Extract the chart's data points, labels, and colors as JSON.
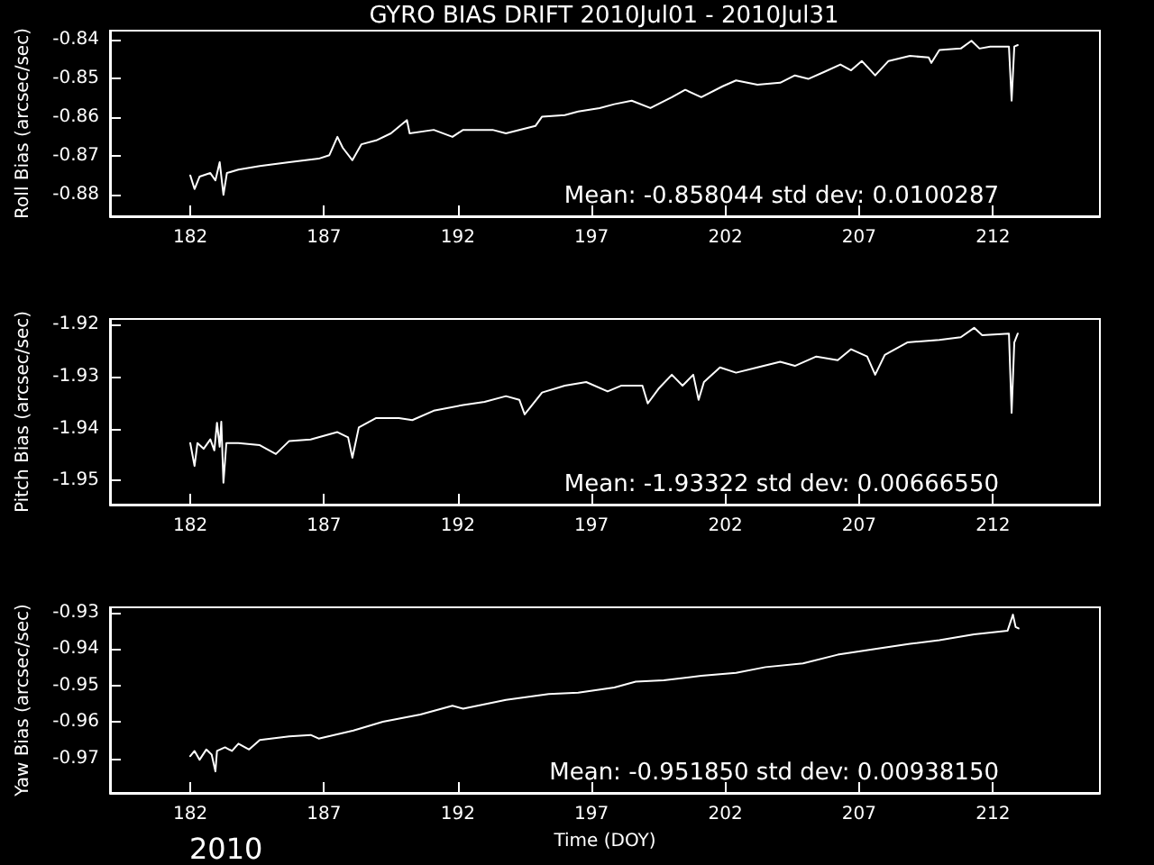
{
  "chart_data": [
    {
      "type": "line",
      "title": "GYRO BIAS DRIFT 2010Jul01 - 2010Jul31",
      "ylabel": "Roll Bias (arcsec/sec)",
      "color": "#ffffff",
      "xlim": [
        179,
        216
      ],
      "xticks": [
        182,
        187,
        192,
        197,
        202,
        207,
        212
      ],
      "ylim": [
        -0.8855,
        -0.8378
      ],
      "yticks": [
        -0.88,
        -0.87,
        -0.86,
        -0.85,
        -0.84
      ],
      "annotations": [
        "Mean: -0.858044 std dev: 0.0100287"
      ],
      "x": [
        182.0,
        182.16,
        182.35,
        182.75,
        182.94,
        183.1,
        183.24,
        183.37,
        183.8,
        184.6,
        185.7,
        186.8,
        187.2,
        187.5,
        187.7,
        188.06,
        188.4,
        188.95,
        189.5,
        190.1,
        190.2,
        191.1,
        191.8,
        192.2,
        193.3,
        193.8,
        194.9,
        195.15,
        196.0,
        196.5,
        197.3,
        197.85,
        198.5,
        199.2,
        200.0,
        200.5,
        201.1,
        201.9,
        202.4,
        203.2,
        204.05,
        204.6,
        205.1,
        205.7,
        206.3,
        206.7,
        207.1,
        207.6,
        208.1,
        208.9,
        209.6,
        209.7,
        210.0,
        210.8,
        211.2,
        211.5,
        211.9,
        212.6,
        212.7,
        212.8,
        212.93
      ],
      "values": [
        -0.875,
        -0.8785,
        -0.8753,
        -0.8744,
        -0.8763,
        -0.8716,
        -0.88,
        -0.8744,
        -0.8735,
        -0.8726,
        -0.8716,
        -0.8707,
        -0.8698,
        -0.8651,
        -0.8679,
        -0.8711,
        -0.867,
        -0.866,
        -0.8642,
        -0.8608,
        -0.8642,
        -0.8633,
        -0.8651,
        -0.8633,
        -0.8633,
        -0.8642,
        -0.8623,
        -0.8599,
        -0.8595,
        -0.8586,
        -0.8577,
        -0.8567,
        -0.8558,
        -0.8577,
        -0.8549,
        -0.853,
        -0.8549,
        -0.8521,
        -0.8506,
        -0.8517,
        -0.8512,
        -0.8493,
        -0.8502,
        -0.8484,
        -0.8465,
        -0.848,
        -0.8456,
        -0.8493,
        -0.8456,
        -0.8443,
        -0.8447,
        -0.8461,
        -0.8428,
        -0.8424,
        -0.8404,
        -0.8424,
        -0.8419,
        -0.8419,
        -0.8558,
        -0.8419,
        -0.8415
      ]
    },
    {
      "type": "line",
      "ylabel": "Pitch Bias (arcsec/sec)",
      "color": "#ffffff",
      "xlim": [
        179,
        216
      ],
      "xticks": [
        182,
        187,
        192,
        197,
        202,
        207,
        212
      ],
      "ylim": [
        -1.9546,
        -1.919
      ],
      "yticks": [
        -1.95,
        -1.94,
        -1.93,
        -1.92
      ],
      "annotations": [
        "Mean: -1.93322 std dev: 0.00666550"
      ],
      "x": [
        182.0,
        182.16,
        182.27,
        182.5,
        182.75,
        182.9,
        183.0,
        183.1,
        183.16,
        183.24,
        183.35,
        183.8,
        184.6,
        185.2,
        185.7,
        186.5,
        187.5,
        187.9,
        188.06,
        188.3,
        188.95,
        189.8,
        190.3,
        191.1,
        192.2,
        193.0,
        193.8,
        194.3,
        194.5,
        195.15,
        196.0,
        196.8,
        197.6,
        198.1,
        198.9,
        199.1,
        199.5,
        200.0,
        200.4,
        200.8,
        201.0,
        201.2,
        201.8,
        202.4,
        203.2,
        204.05,
        204.6,
        205.4,
        206.2,
        206.7,
        207.3,
        207.6,
        207.96,
        208.8,
        210.0,
        210.8,
        211.3,
        211.6,
        212.6,
        212.7,
        212.8,
        212.93
      ],
      "values": [
        -1.9428,
        -1.9472,
        -1.9428,
        -1.9439,
        -1.9421,
        -1.9442,
        -1.9389,
        -1.9435,
        -1.9387,
        -1.9504,
        -1.9428,
        -1.9428,
        -1.9432,
        -1.9449,
        -1.9424,
        -1.9421,
        -1.9407,
        -1.9417,
        -1.9456,
        -1.9398,
        -1.938,
        -1.938,
        -1.9384,
        -1.9366,
        -1.9355,
        -1.9349,
        -1.9338,
        -1.9345,
        -1.9373,
        -1.9331,
        -1.9318,
        -1.9311,
        -1.9329,
        -1.9318,
        -1.9318,
        -1.9352,
        -1.9324,
        -1.9297,
        -1.9318,
        -1.9297,
        -1.9345,
        -1.9311,
        -1.9283,
        -1.9293,
        -1.9283,
        -1.9272,
        -1.928,
        -1.9262,
        -1.9269,
        -1.9248,
        -1.9262,
        -1.9297,
        -1.9259,
        -1.9235,
        -1.923,
        -1.9225,
        -1.9207,
        -1.9221,
        -1.9218,
        -1.937,
        -1.9235,
        -1.9218
      ]
    },
    {
      "type": "line",
      "xlabel": "Time (DOY)",
      "ylabel": "Yaw Bias (arcsec/sec)",
      "color": "#ffffff",
      "xlim": [
        179,
        216
      ],
      "xticks": [
        182,
        187,
        192,
        197,
        202,
        207,
        212
      ],
      "ylim": [
        -0.9795,
        -0.9286
      ],
      "yticks": [
        -0.97,
        -0.96,
        -0.95,
        -0.94,
        -0.93
      ],
      "annotations": [
        "Mean: -0.951850 std dev: 0.00938150",
        "2010"
      ],
      "x": [
        182.0,
        182.16,
        182.35,
        182.6,
        182.8,
        182.94,
        183.0,
        183.3,
        183.56,
        183.8,
        184.2,
        184.6,
        185.7,
        186.5,
        186.8,
        188.1,
        189.2,
        190.6,
        191.8,
        192.2,
        193.8,
        195.4,
        196.5,
        197.85,
        198.65,
        199.7,
        201.1,
        202.4,
        203.5,
        204.9,
        206.2,
        207.6,
        208.9,
        210.0,
        211.3,
        212.55,
        212.75,
        212.85,
        212.96
      ],
      "values": [
        -0.9694,
        -0.968,
        -0.9704,
        -0.9676,
        -0.969,
        -0.9736,
        -0.968,
        -0.967,
        -0.968,
        -0.966,
        -0.9676,
        -0.965,
        -0.964,
        -0.9636,
        -0.9646,
        -0.9624,
        -0.96,
        -0.958,
        -0.9556,
        -0.9564,
        -0.954,
        -0.9524,
        -0.952,
        -0.9506,
        -0.949,
        -0.9486,
        -0.9474,
        -0.9466,
        -0.945,
        -0.944,
        -0.9416,
        -0.94,
        -0.9386,
        -0.9376,
        -0.936,
        -0.935,
        -0.9306,
        -0.934,
        -0.9344
      ]
    }
  ]
}
